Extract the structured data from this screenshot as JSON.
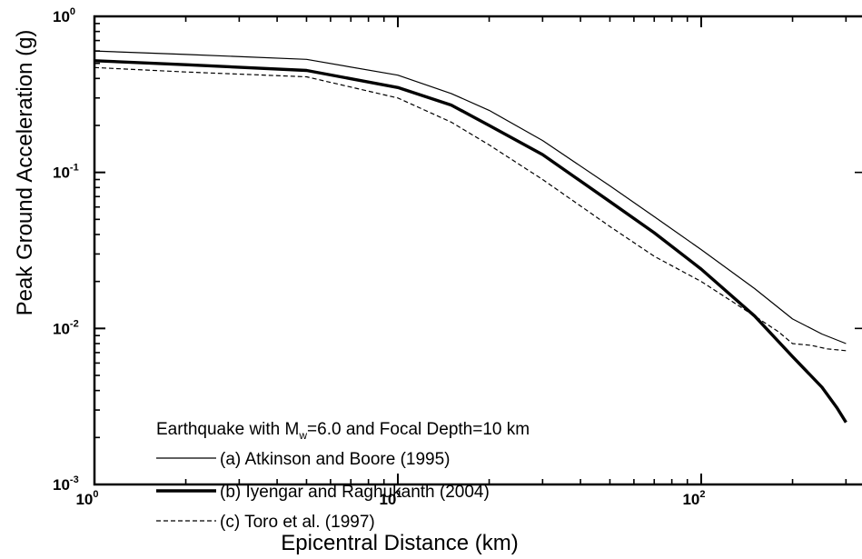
{
  "chart_data": {
    "type": "line",
    "xscale": "log",
    "yscale": "log",
    "xlim": [
      1,
      300
    ],
    "ylim": [
      0.001,
      1
    ],
    "xlabel": "Epicentral Distance (km)",
    "ylabel": "Peak Ground Acceleration (g)",
    "x_ticks": [
      {
        "base": "10",
        "exp": "0"
      },
      {
        "base": "10",
        "exp": "1"
      },
      {
        "base": "10",
        "exp": "2"
      }
    ],
    "y_ticks": [
      {
        "base": "10",
        "exp": "0"
      },
      {
        "base": "10",
        "exp": "-1"
      },
      {
        "base": "10",
        "exp": "-2"
      },
      {
        "base": "10",
        "exp": "-3"
      }
    ],
    "legend": {
      "title_prefix": "Earthquake with M",
      "title_sub": "w",
      "title_suffix": "=6.0 and Focal Depth=10 km"
    },
    "series": [
      {
        "name": "(a) Atkinson and Boore (1995)",
        "style": "thin",
        "x": [
          1,
          2,
          5,
          10,
          15,
          20,
          30,
          50,
          70,
          100,
          150,
          200,
          250,
          300
        ],
        "y": [
          0.6,
          0.57,
          0.53,
          0.42,
          0.32,
          0.25,
          0.16,
          0.082,
          0.052,
          0.032,
          0.018,
          0.0115,
          0.0092,
          0.008
        ]
      },
      {
        "name": "(b) Iyengar and Raghukanth (2004)",
        "style": "thick",
        "x": [
          1,
          2,
          5,
          10,
          15,
          20,
          30,
          50,
          70,
          100,
          150,
          200,
          250,
          280,
          300
        ],
        "y": [
          0.52,
          0.49,
          0.45,
          0.35,
          0.27,
          0.2,
          0.13,
          0.065,
          0.041,
          0.024,
          0.012,
          0.0066,
          0.0042,
          0.0031,
          0.0025
        ]
      },
      {
        "name": "(c) Toro et al. (1997)",
        "style": "dashed",
        "x": [
          1,
          2,
          5,
          10,
          15,
          20,
          30,
          50,
          70,
          100,
          150,
          180,
          200,
          230,
          260,
          300
        ],
        "y": [
          0.47,
          0.44,
          0.41,
          0.3,
          0.21,
          0.15,
          0.09,
          0.045,
          0.029,
          0.02,
          0.012,
          0.0095,
          0.008,
          0.0078,
          0.0074,
          0.0072
        ]
      }
    ],
    "colors": {
      "line": "#000000",
      "background": "#ffffff"
    }
  }
}
